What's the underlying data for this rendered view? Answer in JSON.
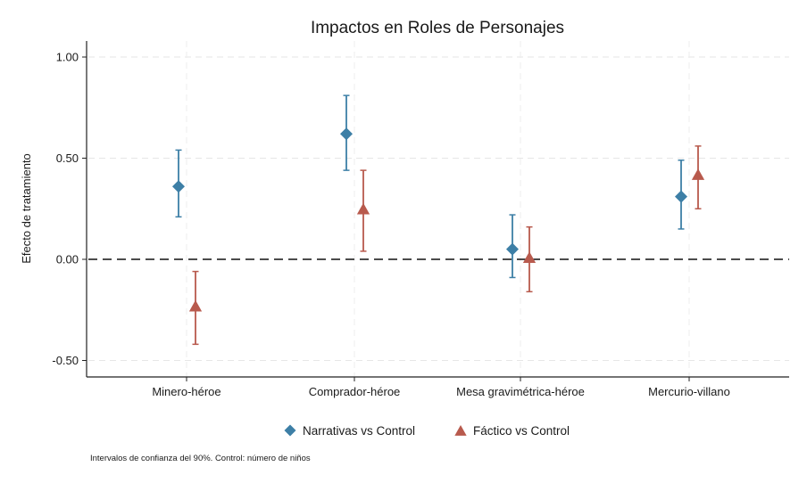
{
  "chart_data": {
    "type": "scatter",
    "subtype": "coefficient-plot-with-error-bars",
    "title": "Impactos en Roles de Personajes",
    "xlabel": "",
    "ylabel": "Efecto de tratamiento",
    "categories": [
      "Minero-héroe",
      "Comprador-héroe",
      "Mesa gravimétrica-héroe",
      "Mercurio-villano"
    ],
    "ylim": [
      -0.57,
      1.08
    ],
    "yticks": [
      1.0,
      0.5,
      0.0,
      -0.5
    ],
    "ytick_labels": [
      "1.00",
      "0.50",
      "0.00",
      "-0.50"
    ],
    "reference_line": {
      "y": 0,
      "style": "dashed",
      "color": "#000000"
    },
    "grid": true,
    "series": [
      {
        "name": "Narrativas vs Control",
        "marker": "diamond",
        "color": "#3d7fa6",
        "values": [
          0.36,
          0.62,
          0.05,
          0.31
        ],
        "ci_low": [
          0.21,
          0.44,
          -0.09,
          0.15
        ],
        "ci_high": [
          0.54,
          0.81,
          0.22,
          0.49
        ]
      },
      {
        "name": "Fáctico vs Control",
        "marker": "triangle",
        "color": "#b85a4d",
        "values": [
          -0.23,
          0.25,
          0.01,
          0.42
        ],
        "ci_low": [
          -0.42,
          0.04,
          -0.16,
          0.25
        ],
        "ci_high": [
          -0.06,
          0.44,
          0.16,
          0.56
        ]
      }
    ],
    "legend": {
      "placement": "bottom",
      "entries": [
        "Narrativas vs Control",
        "Fáctico vs Control"
      ]
    },
    "note": "Intervalos de confianza del 90%. Control: número de niños"
  }
}
